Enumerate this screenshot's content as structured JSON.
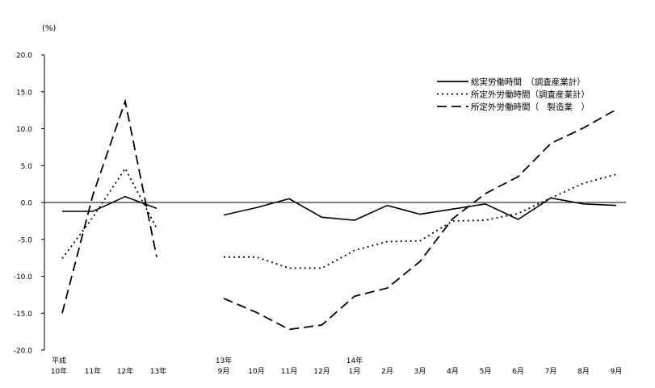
{
  "chart_data": {
    "type": "line",
    "unit_label": "(%)",
    "ylim": [
      -20,
      20
    ],
    "y_ticks": [
      -20,
      -15,
      -10,
      -5,
      0,
      5,
      10,
      15,
      20
    ],
    "y_tick_labels": [
      "-20.0",
      "-15.0",
      "-10.0",
      "-5.0",
      "0.0",
      "5.0",
      "10.0",
      "15.0",
      "20.0"
    ],
    "grid": false,
    "legend_position": "top-right",
    "annual": {
      "x_labels": [
        {
          "line1": "平成",
          "line2": "10年"
        },
        {
          "line1": "",
          "line2": "11年"
        },
        {
          "line1": "",
          "line2": "12年"
        },
        {
          "line1": "",
          "line2": "13年"
        }
      ],
      "series": [
        {
          "name": "総実労働時間　（調査産業計）",
          "style": "solid",
          "values": [
            -1.2,
            -1.2,
            0.8,
            -0.8
          ]
        },
        {
          "name": "所定外労働時間（調査産業計）",
          "style": "dotted",
          "values": [
            -7.6,
            -2.0,
            4.6,
            -3.5
          ]
        },
        {
          "name": "所定外労働時間（　製造業　）",
          "style": "dashed",
          "values": [
            -15.0,
            1.0,
            13.7,
            -7.4
          ]
        }
      ]
    },
    "monthly": {
      "x_labels": [
        {
          "line1": "13年",
          "line2": "9月"
        },
        {
          "line1": "",
          "line2": "10月"
        },
        {
          "line1": "",
          "line2": "11月"
        },
        {
          "line1": "",
          "line2": "12月"
        },
        {
          "line1": "14年",
          "line2": "1月"
        },
        {
          "line1": "",
          "line2": "2月"
        },
        {
          "line1": "",
          "line2": "3月"
        },
        {
          "line1": "",
          "line2": "4月"
        },
        {
          "line1": "",
          "line2": "5月"
        },
        {
          "line1": "",
          "line2": "6月"
        },
        {
          "line1": "",
          "line2": "7月"
        },
        {
          "line1": "",
          "line2": "8月"
        },
        {
          "line1": "",
          "line2": "9月"
        }
      ],
      "series": [
        {
          "name": "総実労働時間　（調査産業計）",
          "style": "solid",
          "values": [
            -1.7,
            -0.7,
            0.5,
            -2.0,
            -2.4,
            -0.4,
            -1.6,
            -0.9,
            -0.2,
            -2.3,
            0.6,
            -0.2,
            -0.4
          ]
        },
        {
          "name": "所定外労働時間（調査産業計）",
          "style": "dotted",
          "values": [
            -7.4,
            -7.4,
            -8.9,
            -8.9,
            -6.5,
            -5.3,
            -5.2,
            -2.5,
            -2.4,
            -1.5,
            0.6,
            2.6,
            3.8
          ]
        },
        {
          "name": "所定外労働時間（　製造業　）",
          "style": "dashed",
          "values": [
            -13.0,
            -14.9,
            -17.2,
            -16.6,
            -12.7,
            -11.6,
            -8.0,
            -2.2,
            1.2,
            3.5,
            8.0,
            10.1,
            12.6
          ]
        }
      ]
    },
    "legend": [
      {
        "label": "総実労働時間　（調査産業計）",
        "style": "solid"
      },
      {
        "label": "所定外労働時間（調査産業計）",
        "style": "dotted"
      },
      {
        "label": "所定外労働時間（　製造業　）",
        "style": "dashed"
      }
    ]
  }
}
